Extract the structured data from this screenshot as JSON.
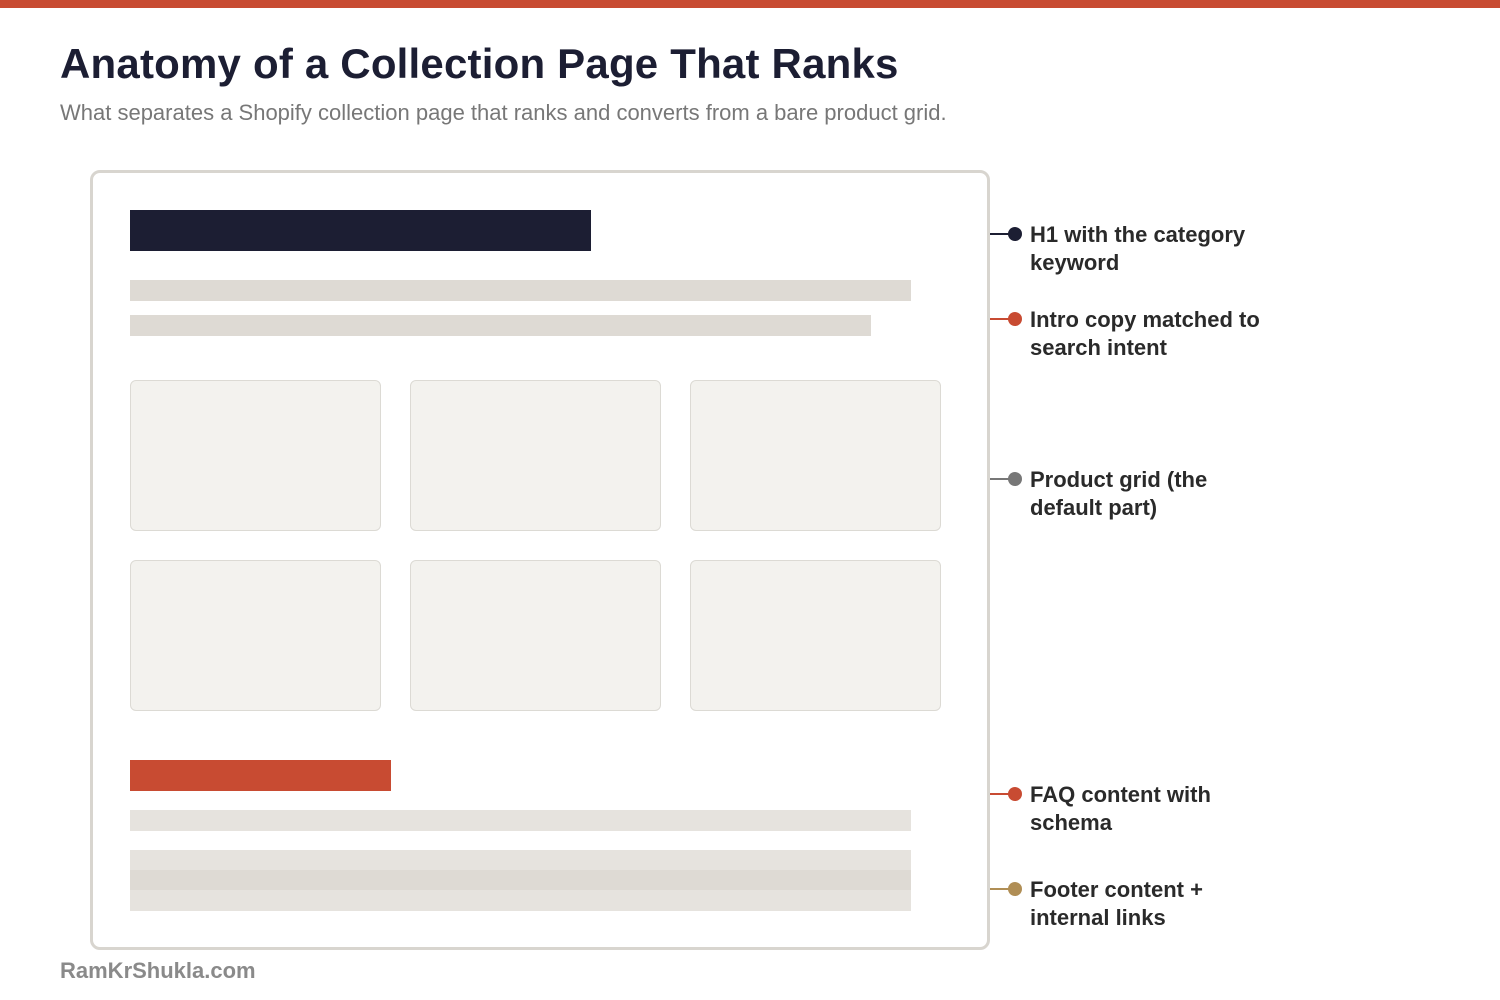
{
  "title": "Anatomy of a Collection Page That Ranks",
  "subtitle": "What separates a Shopify collection page that ranks and converts from a bare product grid.",
  "brand": "RamKrShukla.com",
  "colors": {
    "accent": "#c84b32",
    "navy": "#1c1e33",
    "gray": "#777777",
    "tan": "#b08e55",
    "line_light": "#dedad4",
    "card_fill": "#f3f2ee",
    "faq_line": "#e6e3de"
  },
  "callouts": [
    {
      "label": "H1 with the category keyword",
      "color": "#1c1e33"
    },
    {
      "label": "Intro copy matched to search intent",
      "color": "#c84b32"
    },
    {
      "label": "Product grid (the default part)",
      "color": "#777777"
    },
    {
      "label": "FAQ content with schema",
      "color": "#c84b32"
    },
    {
      "label": "Footer content + internal links",
      "color": "#b08e55"
    }
  ]
}
